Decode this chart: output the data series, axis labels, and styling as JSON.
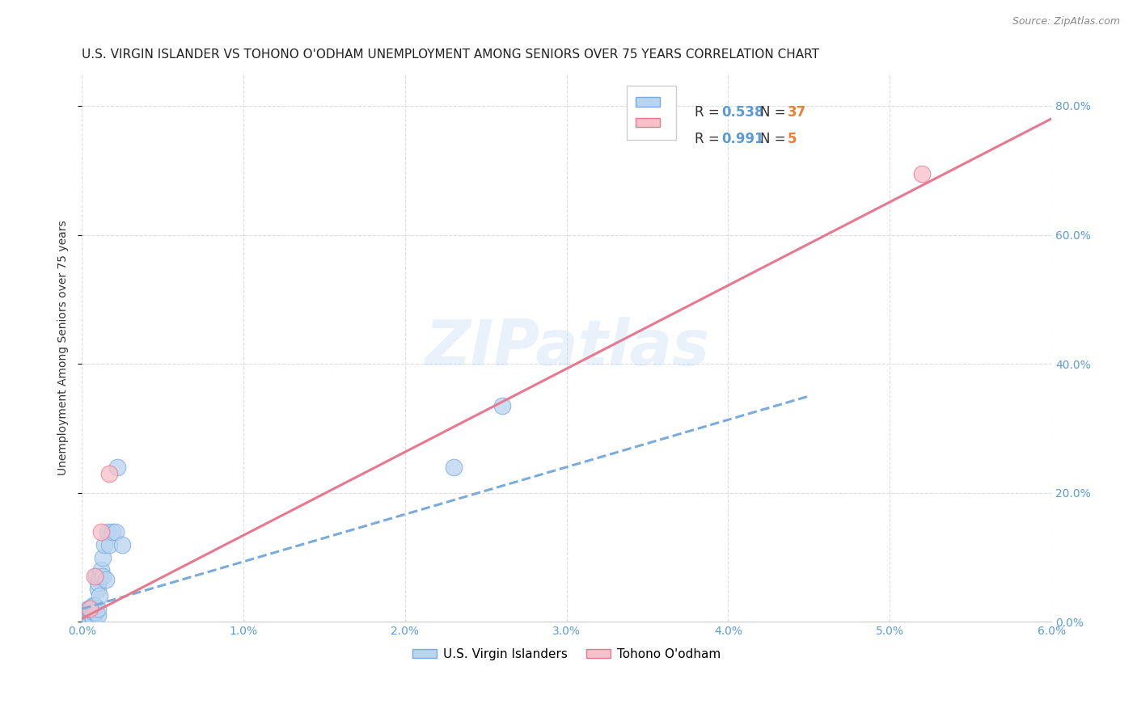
{
  "title": "U.S. VIRGIN ISLANDER VS TOHONO O'ODHAM UNEMPLOYMENT AMONG SENIORS OVER 75 YEARS CORRELATION CHART",
  "source": "Source: ZipAtlas.com",
  "ylabel_left": "Unemployment Among Seniors over 75 years",
  "legend1_label": "U.S. Virgin Islanders",
  "legend2_label": "Tohono O'odham",
  "R1": 0.538,
  "N1": 37,
  "R2": 0.991,
  "N2": 5,
  "xlim": [
    0.0,
    0.06
  ],
  "ylim": [
    0.0,
    0.85
  ],
  "xticks": [
    0.0,
    0.01,
    0.02,
    0.03,
    0.04,
    0.05,
    0.06
  ],
  "yticks_right": [
    0.0,
    0.2,
    0.4,
    0.6,
    0.8
  ],
  "color_blue_fill": "#b8d4f0",
  "color_blue_edge": "#7aabdc",
  "color_pink_fill": "#f8c0c8",
  "color_pink_edge": "#e87890",
  "color_blue_line": "#7aabdc",
  "color_pink_line": "#e87890",
  "watermark": "ZIPatlas",
  "blue_scatter_x": [
    0.0001,
    0.0002,
    0.0003,
    0.0003,
    0.0004,
    0.0004,
    0.0005,
    0.0005,
    0.0005,
    0.0006,
    0.0006,
    0.0007,
    0.0007,
    0.0007,
    0.0008,
    0.0008,
    0.0009,
    0.0009,
    0.001,
    0.001,
    0.001,
    0.001,
    0.0011,
    0.0011,
    0.0012,
    0.0013,
    0.0013,
    0.0014,
    0.0015,
    0.0016,
    0.0017,
    0.0019,
    0.0021,
    0.0022,
    0.0025,
    0.023,
    0.026
  ],
  "blue_scatter_y": [
    0.005,
    0.01,
    0.005,
    0.015,
    0.01,
    0.02,
    0.005,
    0.015,
    0.02,
    0.01,
    0.02,
    0.005,
    0.015,
    0.025,
    0.015,
    0.025,
    0.015,
    0.07,
    0.01,
    0.02,
    0.05,
    0.06,
    0.04,
    0.07,
    0.08,
    0.07,
    0.1,
    0.12,
    0.065,
    0.14,
    0.12,
    0.14,
    0.14,
    0.24,
    0.12,
    0.24,
    0.335
  ],
  "pink_scatter_x": [
    0.0005,
    0.0008,
    0.0012,
    0.0017,
    0.052
  ],
  "pink_scatter_y": [
    0.02,
    0.07,
    0.14,
    0.23,
    0.695
  ],
  "blue_line_x": [
    0.0,
    0.045
  ],
  "blue_line_y": [
    0.02,
    0.35
  ],
  "pink_line_x": [
    0.0,
    0.06
  ],
  "pink_line_y": [
    0.005,
    0.78
  ],
  "background_color": "#ffffff",
  "grid_color": "#dddddd",
  "title_fontsize": 11,
  "axis_label_fontsize": 10,
  "tick_fontsize": 10,
  "r_color": "#5b9bd5",
  "n_color": "#ed7d31"
}
